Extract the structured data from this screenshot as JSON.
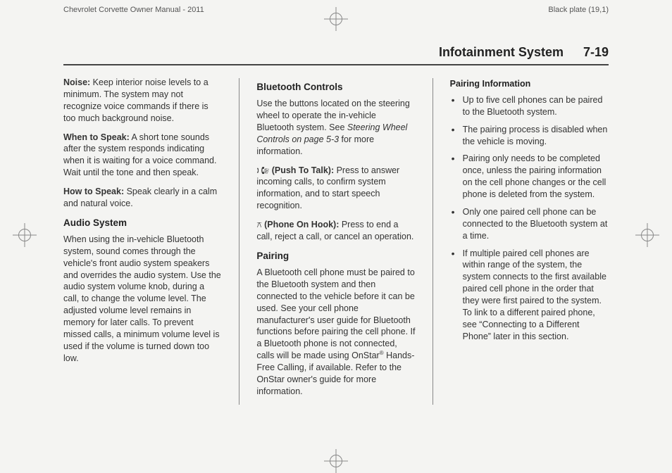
{
  "header": {
    "left": "Chevrolet Corvette Owner Manual - 2011",
    "right": "Black plate (19,1)"
  },
  "section": {
    "title": "Infotainment System",
    "pageno": "7-19"
  },
  "col1": {
    "noise_label": "Noise:",
    "noise_body": "  Keep interior noise levels to a minimum. The system may not recognize voice commands if there is too much background noise.",
    "when_label": "When to Speak:",
    "when_body": "  A short tone sounds after the system responds indicating when it is waiting for a voice command. Wait until the tone and then speak.",
    "how_label": "How to Speak:",
    "how_body": "  Speak clearly in a calm and natural voice.",
    "audio_head": "Audio System",
    "audio_body": "When using the in-vehicle Bluetooth system, sound comes through the vehicle's front audio system speakers and overrides the audio system. Use the audio system volume knob, during a call, to change the volume level. The adjusted volume level remains in memory for later calls. To prevent missed calls, a minimum volume level is used if the volume is turned down too low."
  },
  "col2": {
    "bt_head": "Bluetooth Controls",
    "bt_body_pre": "Use the buttons located on the steering wheel to operate the in-vehicle Bluetooth system. See ",
    "bt_body_italic": "Steering Wheel Controls on page 5-3",
    "bt_body_post": " for more information.",
    "push_label": " (Push To Talk):",
    "push_body": "  Press to answer incoming calls, to confirm system information, and to start speech recognition.",
    "hook_label": " (Phone On Hook):",
    "hook_body": "  Press to end a call, reject a call, or cancel an operation.",
    "pair_head": "Pairing",
    "pair_body_a": "A Bluetooth cell phone must be paired to the Bluetooth system and then connected to the vehicle before it can be used. See your cell phone manufacturer's user guide for Bluetooth functions before pairing the cell phone. If a Bluetooth phone is not connected, calls will be made using OnStar",
    "pair_body_b": " Hands-Free Calling, if available. Refer to the OnStar owner's guide for more information."
  },
  "col3": {
    "info_head": "Pairing Information",
    "b1": "Up to five cell phones can be paired to the Bluetooth system.",
    "b2": "The pairing process is disabled when the vehicle is moving.",
    "b3": "Pairing only needs to be completed once, unless the pairing information on the cell phone changes or the cell phone is deleted from the system.",
    "b4": "Only one paired cell phone can be connected to the Bluetooth system at a time.",
    "b5": "If multiple paired cell phones are within range of the system, the system connects to the first available paired cell phone in the order that they were first paired to the system. To link to a different paired phone, see “Connecting to a Different Phone” later in this section."
  }
}
